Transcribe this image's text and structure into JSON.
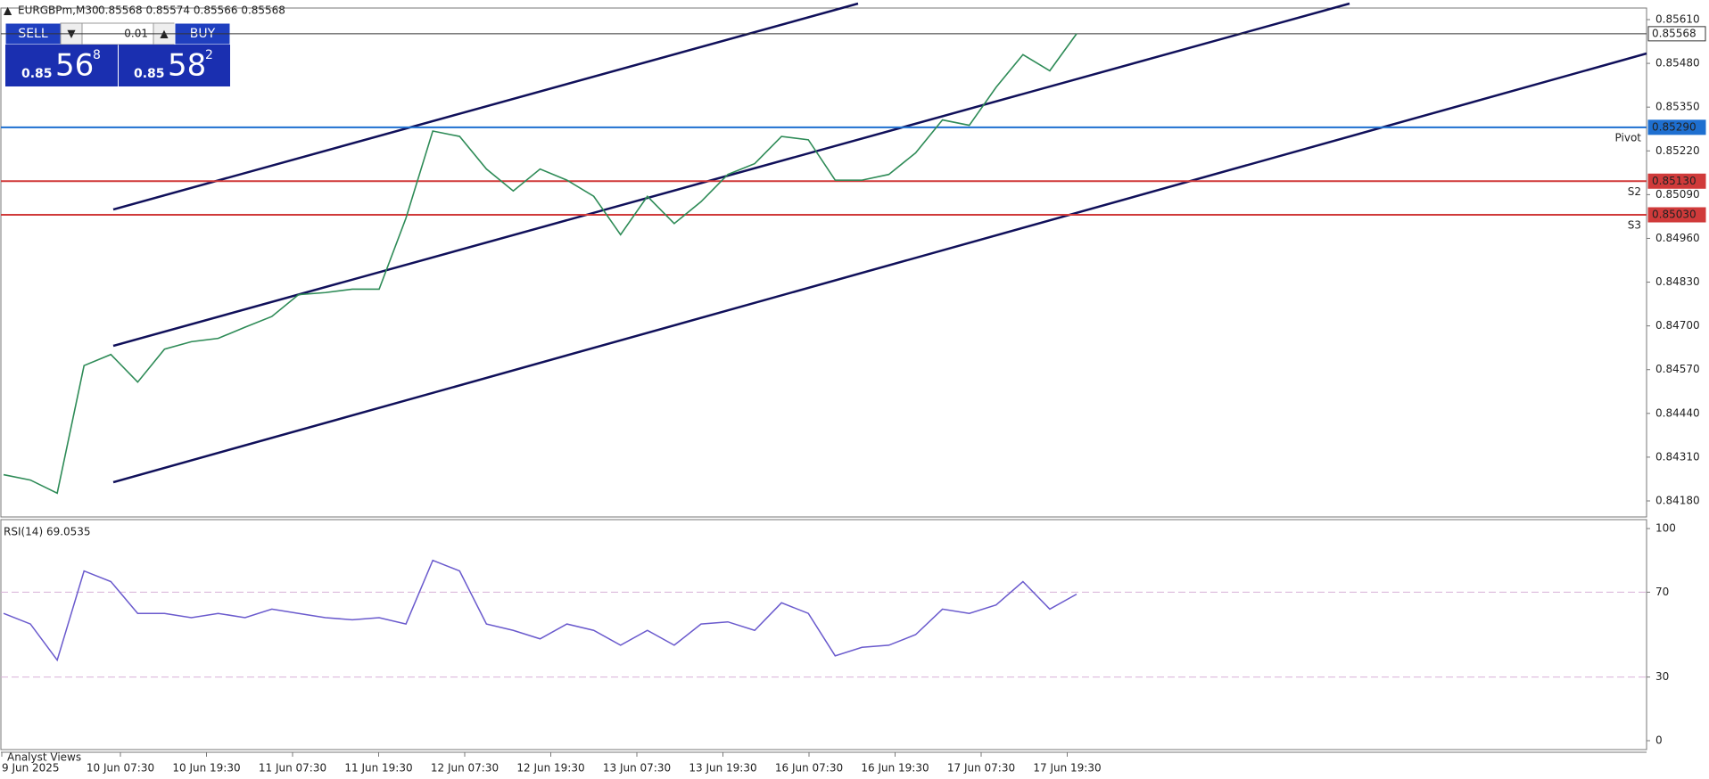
{
  "header": {
    "symbol": "EURGBPm,M30",
    "quote": "0.85568 0.85574 0.85566 0.85568"
  },
  "trade_panel": {
    "sell": "SELL",
    "buy": "BUY",
    "lot": "0.01",
    "bid": {
      "prefix": "0.85",
      "big": "56",
      "small": "8"
    },
    "ask": {
      "prefix": "0.85",
      "big": "58",
      "small": "2"
    }
  },
  "price_chart": {
    "ylim": [
      0.8418,
      0.8561
    ],
    "yticks": [
      "0.85610",
      "0.85480",
      "0.85350",
      "0.85220",
      "0.85090",
      "0.84960",
      "0.84830",
      "0.84700",
      "0.84570",
      "0.84440",
      "0.84310",
      "0.84180"
    ],
    "close": [
      0.84258,
      0.84242,
      0.84203,
      0.84582,
      0.84615,
      0.84533,
      0.84631,
      0.84653,
      0.84663,
      0.84696,
      0.84728,
      0.84793,
      0.84799,
      0.84809,
      0.84809,
      0.8502,
      0.85279,
      0.85263,
      0.85166,
      0.85101,
      0.85166,
      0.85133,
      0.85085,
      0.84971,
      0.85085,
      0.85004,
      0.85069,
      0.8515,
      0.85182,
      0.85263,
      0.85253,
      0.85133,
      0.85133,
      0.8515,
      0.85214,
      0.85312,
      0.85296,
      0.85409,
      0.85506,
      0.85458,
      0.85568
    ],
    "line_color": "#2e8b57",
    "levels": [
      {
        "value": "0.85568",
        "color": "#333333"
      },
      {
        "value": "0.85290",
        "name": "Pivot",
        "color": "#1e6fd0"
      },
      {
        "value": "0.85130",
        "name": "S2",
        "color": "#d03a3a"
      },
      {
        "value": "0.85030",
        "name": "S3",
        "color": "#d03a3a"
      }
    ]
  },
  "rsi": {
    "label": "RSI(14) 69.0535",
    "ylim": [
      0,
      100
    ],
    "yticks": [
      100,
      70,
      30,
      0
    ],
    "levels": [
      70,
      30
    ],
    "color": "#6a5acd",
    "values": [
      60,
      55,
      38,
      80,
      75,
      60,
      60,
      58,
      60,
      58,
      62,
      60,
      58,
      57,
      58,
      55,
      85,
      80,
      55,
      52,
      48,
      55,
      52,
      45,
      52,
      45,
      55,
      56,
      52,
      65,
      60,
      40,
      44,
      45,
      50,
      62,
      60,
      64,
      75,
      62,
      69.0535
    ]
  },
  "time_axis": [
    "9 Jun 2025",
    "10 Jun 07:30",
    "10 Jun 19:30",
    "11 Jun 07:30",
    "11 Jun 19:30",
    "12 Jun 07:30",
    "12 Jun 19:30",
    "13 Jun 07:30",
    "13 Jun 19:30",
    "16 Jun 07:30",
    "16 Jun 19:30",
    "17 Jun 07:30",
    "17 Jun 19:30"
  ],
  "footer": "Analyst Views"
}
